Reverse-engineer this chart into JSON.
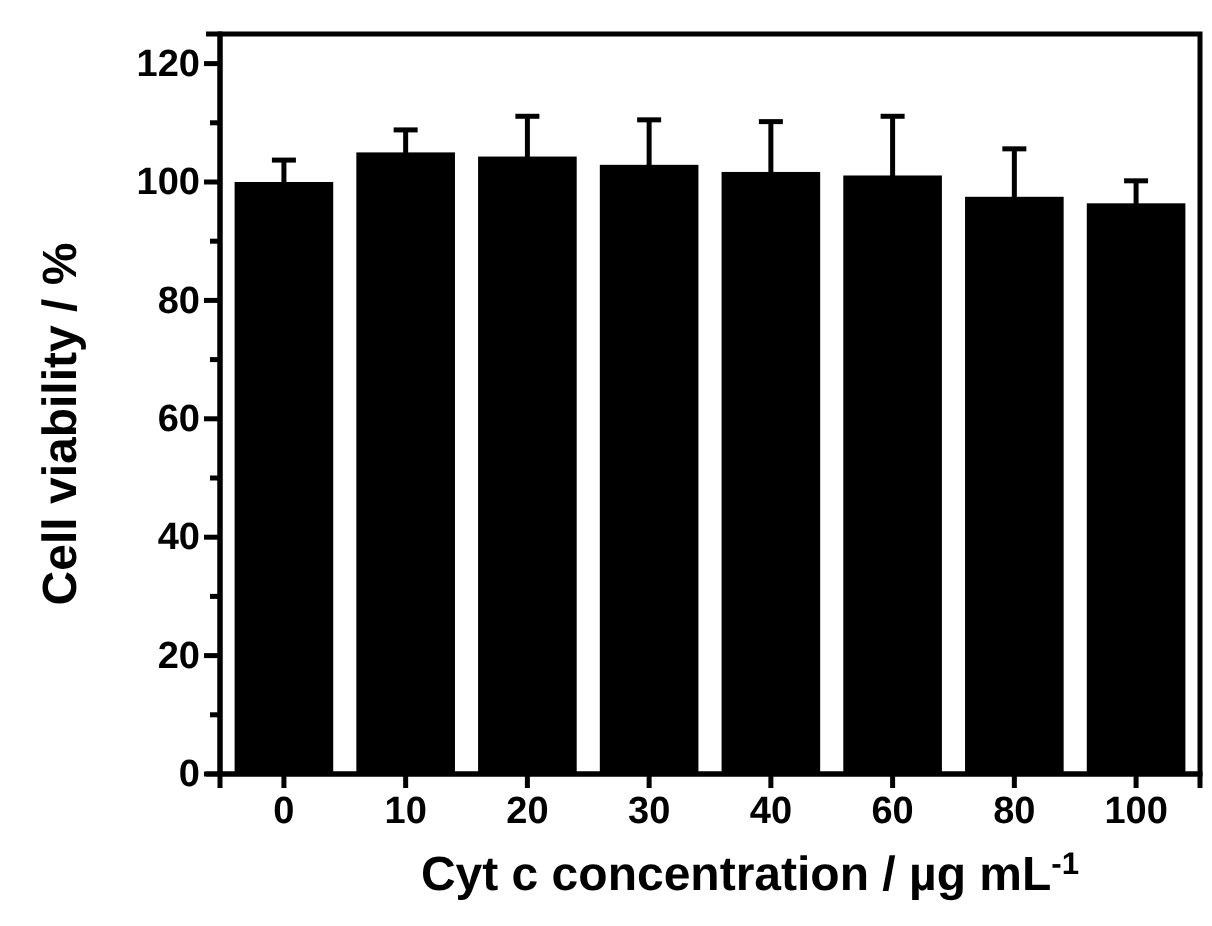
{
  "chart_data": {
    "type": "bar",
    "xlabel": "Cyt c concentration / µg mL$^{-1}$",
    "ylabel": "Cell viability / %",
    "categories": [
      "0",
      "10",
      "20",
      "30",
      "40",
      "60",
      "80",
      "100"
    ],
    "values": [
      100,
      105,
      104.3,
      102.9,
      101.7,
      101.1,
      97.5,
      96.4
    ],
    "errors": [
      3.7,
      3.8,
      6.8,
      7.6,
      8.5,
      10,
      8.1,
      3.8
    ],
    "color": "#000000",
    "ylim": [
      0,
      125
    ],
    "yticks": [
      0,
      {
        "value": 10,
        "label": null
      },
      20,
      {
        "value": 30,
        "label": null
      },
      40,
      {
        "value": 50,
        "label": null
      },
      60,
      {
        "value": 70,
        "label": null
      },
      80,
      {
        "value": 90,
        "label": null
      },
      100,
      {
        "value": 110,
        "label": null
      },
      120
    ],
    "grid": false
  }
}
